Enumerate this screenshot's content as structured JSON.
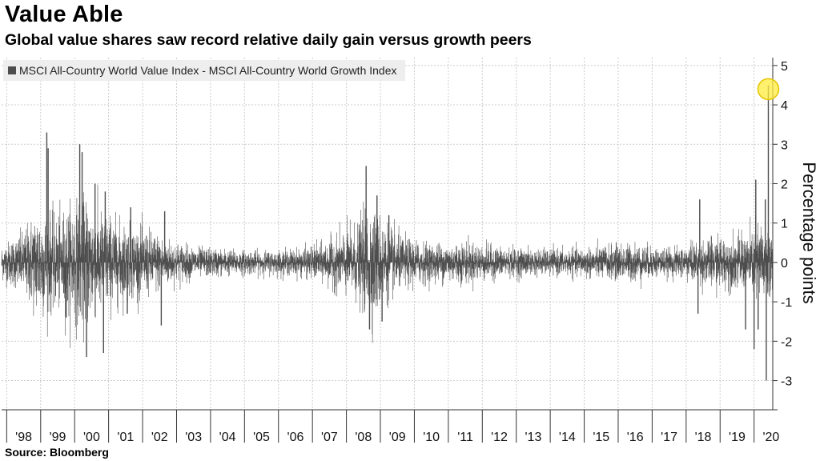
{
  "title": "Value Able",
  "subtitle": "Global value shares saw record relative daily gain versus growth peers",
  "source": "Source: Bloomberg",
  "colors": {
    "series": "#4d4d4d",
    "highlight": "#ffec3d",
    "grid": "#cccccc",
    "background": "#ffffff"
  },
  "chart_data": {
    "type": "bar",
    "title": "Value Able",
    "subtitle": "Global value shares saw record relative daily gain versus growth peers",
    "ylabel": "Percentage points",
    "xlabel": "",
    "ylim": [
      -3.7,
      5.2
    ],
    "yticks": [
      -3,
      -2,
      -1,
      0,
      1,
      2,
      3,
      4,
      5
    ],
    "y_axis_position": "right",
    "x_tick_labels": [
      "'98",
      "'99",
      "'00",
      "'01",
      "'02",
      "'03",
      "'04",
      "'05",
      "'06",
      "'07",
      "'08",
      "'09",
      "'10",
      "'11",
      "'12",
      "'13",
      "'14",
      "'15",
      "'16",
      "'17",
      "'18",
      "'19",
      "'20"
    ],
    "x_range_years": [
      1997.85,
      2020.55
    ],
    "grid": true,
    "legend_position": "top-left",
    "series": [
      {
        "name": "MSCI All-Country World Value Index - MSCI All-Country World Growth Index",
        "frequency": "daily",
        "volatility_envelope": [
          [
            1997.85,
            0.5
          ],
          [
            1998.5,
            0.9
          ],
          [
            1998.9,
            1.6
          ],
          [
            1999.5,
            1.3
          ],
          [
            1999.9,
            1.7
          ],
          [
            2000.3,
            1.9
          ],
          [
            2000.7,
            1.5
          ],
          [
            2001.5,
            1.1
          ],
          [
            2002.3,
            0.9
          ],
          [
            2002.8,
            0.65
          ],
          [
            2003.5,
            0.45
          ],
          [
            2004.5,
            0.38
          ],
          [
            2005.5,
            0.33
          ],
          [
            2006.5,
            0.38
          ],
          [
            2007.3,
            0.55
          ],
          [
            2007.9,
            0.9
          ],
          [
            2008.3,
            1.1
          ],
          [
            2008.7,
            1.7
          ],
          [
            2009.1,
            1.2
          ],
          [
            2009.6,
            0.75
          ],
          [
            2010.5,
            0.55
          ],
          [
            2011.5,
            0.6
          ],
          [
            2012.5,
            0.45
          ],
          [
            2013.5,
            0.38
          ],
          [
            2014.5,
            0.38
          ],
          [
            2015.5,
            0.48
          ],
          [
            2016.5,
            0.55
          ],
          [
            2017.5,
            0.38
          ],
          [
            2018.2,
            0.55
          ],
          [
            2018.9,
            0.75
          ],
          [
            2019.5,
            0.75
          ],
          [
            2019.9,
            0.9
          ],
          [
            2020.2,
            1.3
          ],
          [
            2020.55,
            1.1
          ]
        ],
        "spikes": [
          {
            "x": 1999.18,
            "y": 3.3
          },
          {
            "x": 1999.22,
            "y": 2.9
          },
          {
            "x": 1999.75,
            "y": -1.4
          },
          {
            "x": 2000.15,
            "y": 3.0
          },
          {
            "x": 2000.22,
            "y": 2.8
          },
          {
            "x": 2000.35,
            "y": -2.4
          },
          {
            "x": 2000.6,
            "y": 2.0
          },
          {
            "x": 2000.85,
            "y": -2.3
          },
          {
            "x": 2000.9,
            "y": 1.8
          },
          {
            "x": 2001.55,
            "y": -1.3
          },
          {
            "x": 2001.65,
            "y": 1.4
          },
          {
            "x": 2002.55,
            "y": -1.6
          },
          {
            "x": 2002.65,
            "y": 1.3
          },
          {
            "x": 2008.58,
            "y": 2.45
          },
          {
            "x": 2008.68,
            "y": -1.7
          },
          {
            "x": 2008.9,
            "y": 1.7
          },
          {
            "x": 2009.05,
            "y": -1.5
          },
          {
            "x": 2009.25,
            "y": 1.2
          },
          {
            "x": 2018.35,
            "y": -1.3
          },
          {
            "x": 2018.4,
            "y": 1.6
          },
          {
            "x": 2019.75,
            "y": -1.7
          },
          {
            "x": 2020.0,
            "y": -2.2
          },
          {
            "x": 2020.05,
            "y": 2.1
          },
          {
            "x": 2020.12,
            "y": -1.7
          },
          {
            "x": 2020.33,
            "y": 1.6
          },
          {
            "x": 2020.36,
            "y": -3.0
          },
          {
            "x": 2020.42,
            "y": 4.5
          }
        ]
      }
    ],
    "annotations": [
      {
        "type": "highlight-circle",
        "x": 2020.42,
        "y": 4.4,
        "note": "record relative daily gain"
      }
    ]
  }
}
